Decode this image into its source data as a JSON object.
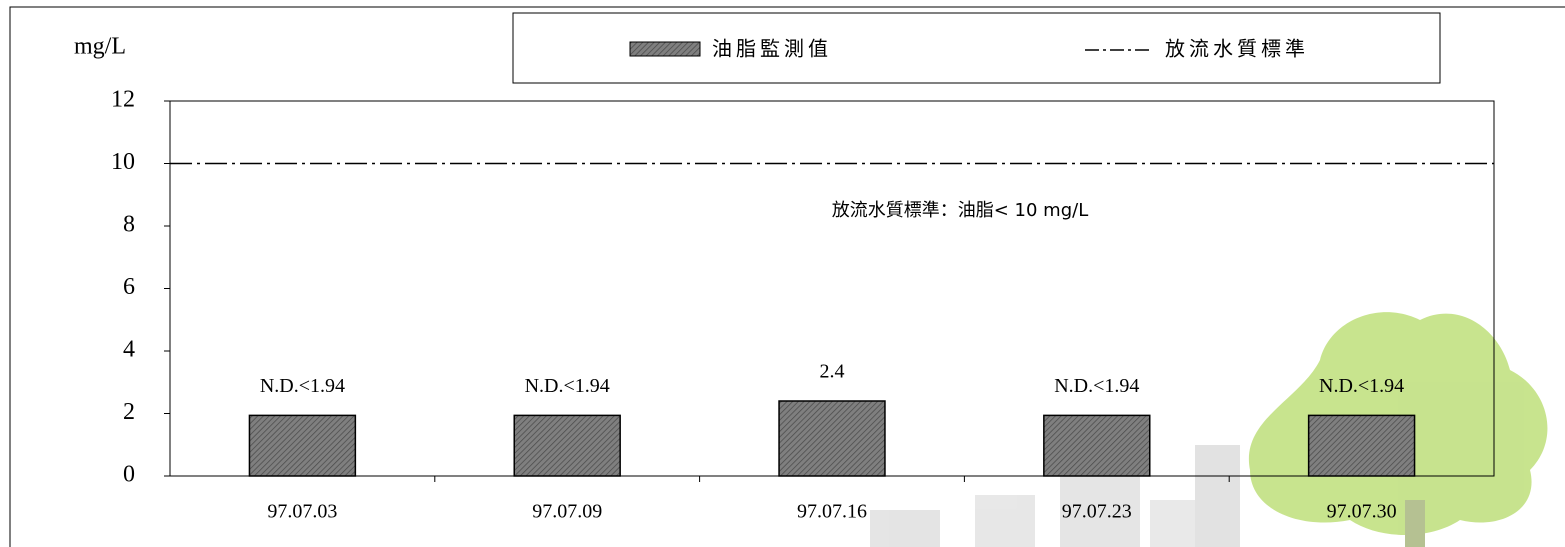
{
  "chart_data": {
    "type": "bar",
    "y_label": "mg/L",
    "categories": [
      "97.07.03",
      "97.07.09",
      "97.07.16",
      "97.07.23",
      "97.07.30"
    ],
    "series": [
      {
        "name": "油脂監測值",
        "color": "#7f7f7f",
        "values": [
          1.94,
          1.94,
          2.4,
          1.94,
          1.94
        ],
        "value_labels": [
          "N.D.<1.94",
          "N.D.<1.94",
          "2.4",
          "N.D.<1.94",
          "N.D.<1.94"
        ]
      }
    ],
    "reference_line": {
      "name": "放流水質標準",
      "value": 10,
      "color": "#000000"
    },
    "annotation": "放流水質標準：油脂< 10 mg/L",
    "ylim": [
      0,
      12
    ],
    "yticks": [
      0,
      2,
      4,
      6,
      8,
      10,
      12
    ]
  }
}
